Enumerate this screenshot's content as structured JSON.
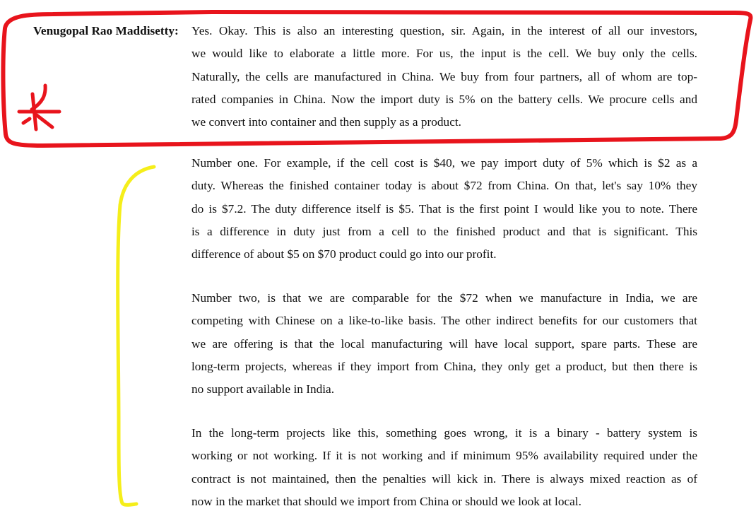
{
  "speaker": "Venugopal Rao Maddisetty:",
  "paragraphs": [
    {
      "lines": [
        "Yes. Okay. This is also an interesting question, sir. Again, in the interest of all our investors,",
        "we would like to elaborate a little more. For us, the input is the cell. We buy only the cells.",
        "Naturally, the cells are manufactured in China. We buy from four partners, all of whom are top-",
        "rated companies in China. Now the import duty is 5% on the battery cells. We procure cells and",
        "we convert into container and then supply as a product."
      ]
    },
    {
      "lines": [
        "Number one. For example, if the cell cost is $40, we pay import duty of  5% which is $2 as a",
        "duty. Whereas the finished container today is about $72 from China. On that, let's say 10% they",
        "do is $7.2. The duty difference itself is $5. That is the first point I would like you to note. There",
        "is a difference in duty just from a cell to the finished product and that is significant. This",
        "difference of about $5 on $70 product could go into our profit."
      ]
    },
    {
      "lines": [
        "Number two, is that we are comparable for the $72 when we manufacture in India, we are",
        "competing with Chinese on a like-to-like basis. The other indirect benefits for our customers that",
        "we are offering is that the local manufacturing will have local support, spare parts. These are",
        "long-term projects, whereas if they import from China, they only get a product, but then there is",
        "no support available in India."
      ]
    },
    {
      "lines": [
        "In the long-term projects like this, something goes wrong, it is a binary - battery system is",
        "working or not working. If it is not working and if minimum 95% availability required under the",
        "contract is not maintained, then the penalties will kick in. There is always mixed reaction as of",
        "now in the market that should we import from China or should we look at local."
      ]
    }
  ],
  "annotations": {
    "highlight_box_color": "#e8141c",
    "asterisk_color": "#e8141c",
    "bracket_color": "#f5ee1a"
  }
}
